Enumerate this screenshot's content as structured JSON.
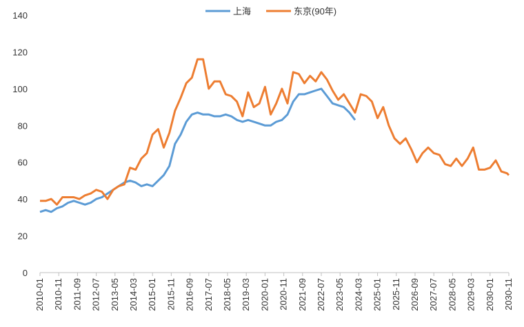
{
  "chart_data": {
    "type": "line",
    "x": [
      "2010-01",
      "2010-04",
      "2010-07",
      "2010-10",
      "2011-01",
      "2011-04",
      "2011-07",
      "2011-10",
      "2012-01",
      "2012-04",
      "2012-07",
      "2012-10",
      "2013-01",
      "2013-04",
      "2013-07",
      "2013-10",
      "2014-01",
      "2014-04",
      "2014-07",
      "2014-10",
      "2015-01",
      "2015-04",
      "2015-07",
      "2015-10",
      "2016-01",
      "2016-04",
      "2016-07",
      "2016-10",
      "2017-01",
      "2017-04",
      "2017-07",
      "2017-10",
      "2018-01",
      "2018-04",
      "2018-07",
      "2018-10",
      "2019-01",
      "2019-04",
      "2019-07",
      "2019-10",
      "2020-01",
      "2020-04",
      "2020-07",
      "2020-10",
      "2021-01",
      "2021-04",
      "2021-07",
      "2021-10",
      "2022-01",
      "2022-04",
      "2022-07",
      "2022-10",
      "2023-01",
      "2023-04",
      "2023-07",
      "2023-10",
      "2024-01",
      "2024-04",
      "2024-07",
      "2024-10",
      "2025-01",
      "2025-04",
      "2025-07",
      "2025-10",
      "2026-01",
      "2026-04",
      "2026-07",
      "2026-10",
      "2027-01",
      "2027-04",
      "2027-07",
      "2027-10",
      "2028-01",
      "2028-04",
      "2028-07",
      "2028-10",
      "2029-01",
      "2029-04",
      "2029-07",
      "2029-10",
      "2030-01",
      "2030-04",
      "2030-07",
      "2030-10",
      "2030-11"
    ],
    "series": [
      {
        "name": "上海",
        "color": "#5b9bd5",
        "values": [
          33,
          34,
          33,
          35,
          36,
          38,
          39,
          38,
          37,
          38,
          40,
          41,
          43,
          45,
          47,
          49,
          50,
          49,
          47,
          48,
          47,
          50,
          53,
          58,
          70,
          75,
          82,
          86,
          87,
          86,
          86,
          85,
          85,
          86,
          85,
          83,
          82,
          83,
          82,
          81,
          80,
          80,
          82,
          83,
          86,
          93,
          97,
          97,
          98,
          99,
          100,
          96,
          92,
          91,
          90,
          87,
          83,
          null,
          null,
          null,
          null,
          null,
          null,
          null,
          null,
          null,
          null,
          null,
          null,
          null,
          null,
          null,
          null,
          null,
          null,
          null,
          null,
          null,
          null,
          null,
          null,
          null,
          null,
          null,
          null
        ]
      },
      {
        "name": "东京(90年)",
        "color": "#ed7d31",
        "values": [
          39,
          39,
          40,
          37,
          41,
          41,
          41,
          40,
          42,
          43,
          45,
          44,
          40,
          45,
          47,
          48,
          57,
          56,
          62,
          65,
          75,
          78,
          68,
          76,
          88,
          95,
          103,
          106,
          116,
          116,
          100,
          104,
          104,
          97,
          96,
          93,
          85,
          98,
          90,
          92,
          101,
          86,
          92,
          100,
          92,
          109,
          108,
          103,
          107,
          104,
          109,
          105,
          99,
          94,
          97,
          92,
          87,
          97,
          96,
          93,
          84,
          90,
          80,
          73,
          70,
          73,
          67,
          60,
          65,
          68,
          65,
          64,
          59,
          58,
          62,
          58,
          62,
          68,
          56,
          56,
          57,
          61,
          55,
          54,
          53
        ]
      }
    ],
    "xlim": [
      "2010-01",
      "2030-11"
    ],
    "xticks": [
      "2010-01",
      "2010-11",
      "2011-09",
      "2012-07",
      "2013-05",
      "2014-03",
      "2015-01",
      "2015-11",
      "2016-09",
      "2017-07",
      "2018-05",
      "2019-03",
      "2020-01",
      "2020-11",
      "2021-09",
      "2022-07",
      "2023-05",
      "2024-03",
      "2025-01",
      "2025-11",
      "2026-09",
      "2027-07",
      "2028-05",
      "2029-03",
      "2030-01",
      "2030-11"
    ],
    "ylim": [
      0,
      140
    ],
    "yticks": [
      0,
      20,
      40,
      60,
      80,
      100,
      120,
      140
    ],
    "grid": false,
    "legend": "top"
  }
}
